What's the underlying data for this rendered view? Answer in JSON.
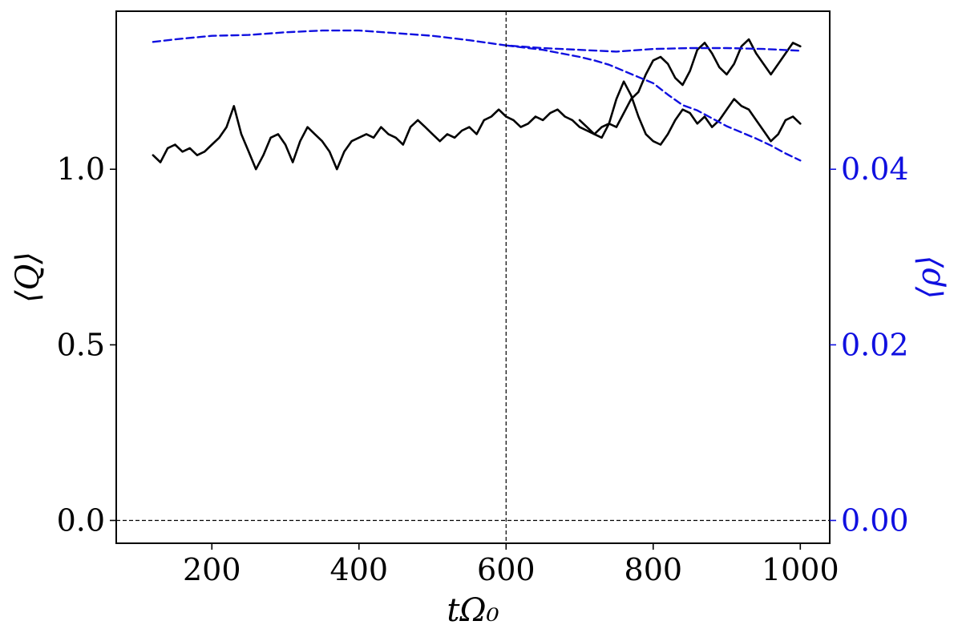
{
  "chart_data": {
    "type": "line",
    "xlabel": "tΩ₀",
    "ylabel_left": "⟨Q⟩",
    "ylabel_right": "⟨ρ⟩",
    "xlim": [
      70,
      1040
    ],
    "ylim_left": [
      -0.065,
      1.45
    ],
    "ylim_right": [
      -0.0026,
      0.058
    ],
    "x_ticks": [
      200,
      400,
      600,
      800,
      1000
    ],
    "x_tick_labels": [
      "200",
      "400",
      "600",
      "800",
      "1000"
    ],
    "y_left_ticks": [
      0.0,
      0.5,
      1.0
    ],
    "y_left_tick_labels": [
      "0.0",
      "0.5",
      "1.0"
    ],
    "y_right_ticks": [
      0.0,
      0.02,
      0.04
    ],
    "y_right_tick_labels": [
      "0.00",
      "0.02",
      "0.04"
    ],
    "reference_lines": {
      "vertical_x": 600,
      "horizontal_y_left": 0.0
    },
    "colors": {
      "q_series": "#000000",
      "rho_series": "#1010e0",
      "right_axis": "#1010e0"
    },
    "series": [
      {
        "axis": "left",
        "style": "solid",
        "x": [
          120,
          130,
          140,
          150,
          160,
          170,
          180,
          190,
          200,
          210,
          220,
          230,
          240,
          250,
          260,
          270,
          280,
          290,
          300,
          310,
          320,
          330,
          340,
          350,
          360,
          370,
          380,
          390,
          400,
          410,
          420,
          430,
          440,
          450,
          460,
          470,
          480,
          490,
          500,
          510,
          520,
          530,
          540,
          550,
          560,
          570,
          580,
          590,
          600,
          610,
          620,
          630,
          640,
          650,
          660,
          670,
          680,
          690,
          700,
          710,
          720,
          730,
          740,
          750,
          760,
          770,
          780,
          790,
          800,
          810,
          820,
          830,
          840,
          850,
          860,
          870,
          880,
          890,
          900,
          910,
          920,
          930,
          940,
          950,
          960,
          970,
          980,
          990,
          1000
        ],
        "y": [
          1.04,
          1.02,
          1.06,
          1.07,
          1.05,
          1.06,
          1.04,
          1.05,
          1.07,
          1.09,
          1.12,
          1.18,
          1.1,
          1.05,
          1.0,
          1.04,
          1.09,
          1.1,
          1.07,
          1.02,
          1.08,
          1.12,
          1.1,
          1.08,
          1.05,
          1.0,
          1.05,
          1.08,
          1.09,
          1.1,
          1.09,
          1.12,
          1.1,
          1.09,
          1.07,
          1.12,
          1.14,
          1.12,
          1.1,
          1.08,
          1.1,
          1.09,
          1.11,
          1.12,
          1.1,
          1.14,
          1.15,
          1.17,
          1.15,
          1.14,
          1.12,
          1.13,
          1.15,
          1.14,
          1.16,
          1.17,
          1.15,
          1.14,
          1.12,
          1.11,
          1.1,
          1.12,
          1.13,
          1.12,
          1.16,
          1.2,
          1.22,
          1.27,
          1.31,
          1.32,
          1.3,
          1.26,
          1.24,
          1.28,
          1.34,
          1.36,
          1.33,
          1.29,
          1.27,
          1.3,
          1.35,
          1.37,
          1.33,
          1.3,
          1.27,
          1.3,
          1.33,
          1.36,
          1.35
        ]
      },
      {
        "axis": "left",
        "style": "solid",
        "x": [
          700,
          710,
          720,
          730,
          740,
          750,
          760,
          770,
          780,
          790,
          800,
          810,
          820,
          830,
          840,
          850,
          860,
          870,
          880,
          890,
          900,
          910,
          920,
          930,
          940,
          950,
          960,
          970,
          980,
          990,
          1000
        ],
        "y": [
          1.14,
          1.12,
          1.1,
          1.09,
          1.13,
          1.2,
          1.25,
          1.21,
          1.15,
          1.1,
          1.08,
          1.07,
          1.1,
          1.14,
          1.17,
          1.16,
          1.13,
          1.15,
          1.12,
          1.14,
          1.17,
          1.2,
          1.18,
          1.17,
          1.14,
          1.11,
          1.08,
          1.1,
          1.14,
          1.15,
          1.13
        ]
      },
      {
        "axis": "right",
        "style": "dashed",
        "x": [
          120,
          150,
          200,
          250,
          300,
          350,
          400,
          450,
          500,
          550,
          600,
          650,
          700,
          750,
          800,
          850,
          900,
          950,
          1000
        ],
        "y": [
          0.0545,
          0.0548,
          0.0552,
          0.0553,
          0.0556,
          0.0558,
          0.0558,
          0.0555,
          0.0552,
          0.0547,
          0.0541,
          0.0538,
          0.0536,
          0.0534,
          0.0537,
          0.0538,
          0.0538,
          0.0537,
          0.0535
        ]
      },
      {
        "axis": "right",
        "style": "dashed",
        "x": [
          600,
          650,
          700,
          720,
          740,
          760,
          780,
          800,
          820,
          840,
          860,
          880,
          900,
          920,
          940,
          960,
          980,
          1000
        ],
        "y": [
          0.0541,
          0.0536,
          0.0528,
          0.0524,
          0.0519,
          0.0512,
          0.0505,
          0.0498,
          0.0485,
          0.0473,
          0.0467,
          0.0458,
          0.0449,
          0.0442,
          0.0435,
          0.0427,
          0.0418,
          0.041
        ]
      }
    ]
  }
}
